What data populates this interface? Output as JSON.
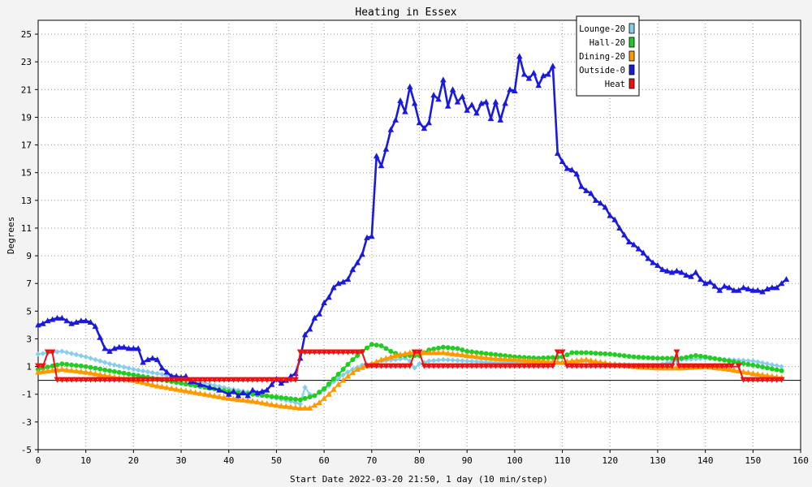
{
  "chart_data": {
    "type": "line",
    "title": "Heating in Essex",
    "xlabel": "Start Date 2022-03-20 21:50, 1 day (10 min/step)",
    "ylabel": "Degrees",
    "xlim": [
      0,
      160
    ],
    "ylim": [
      -5,
      26
    ],
    "xticks": [
      0,
      10,
      20,
      30,
      40,
      50,
      60,
      70,
      80,
      90,
      100,
      110,
      120,
      130,
      140,
      150,
      160
    ],
    "yticks": [
      -5,
      -3,
      -1,
      1,
      3,
      5,
      7,
      9,
      11,
      13,
      15,
      17,
      19,
      21,
      23,
      25
    ],
    "grid": true,
    "legend_position": "top-right",
    "zero_line": 0,
    "series": [
      {
        "name": "Lounge-20",
        "color": "#87ceeb",
        "marker": "diamond",
        "points": [
          [
            0,
            1.9
          ],
          [
            5,
            2.1
          ],
          [
            10,
            1.7
          ],
          [
            15,
            1.2
          ],
          [
            20,
            0.8
          ],
          [
            25,
            0.5
          ],
          [
            30,
            0.2
          ],
          [
            35,
            -0.2
          ],
          [
            40,
            -0.6
          ],
          [
            45,
            -0.9
          ],
          [
            50,
            -1.3
          ],
          [
            53,
            -1.5
          ],
          [
            55,
            -1.7
          ],
          [
            56,
            -0.5
          ],
          [
            57,
            -1.0
          ],
          [
            58,
            -1.1
          ],
          [
            60,
            -0.7
          ],
          [
            62,
            -0.1
          ],
          [
            64,
            0.4
          ],
          [
            66,
            0.8
          ],
          [
            68,
            1.1
          ],
          [
            70,
            1.2
          ],
          [
            72,
            1.4
          ],
          [
            75,
            1.5
          ],
          [
            77,
            1.6
          ],
          [
            78,
            1.4
          ],
          [
            79,
            0.9
          ],
          [
            80,
            1.2
          ],
          [
            82,
            1.4
          ],
          [
            85,
            1.5
          ],
          [
            90,
            1.4
          ],
          [
            95,
            1.3
          ],
          [
            100,
            1.3
          ],
          [
            105,
            1.3
          ],
          [
            110,
            1.3
          ],
          [
            115,
            1.4
          ],
          [
            120,
            1.2
          ],
          [
            125,
            1.1
          ],
          [
            130,
            1.1
          ],
          [
            135,
            1.5
          ],
          [
            140,
            1.6
          ],
          [
            145,
            1.5
          ],
          [
            150,
            1.4
          ],
          [
            156,
            1.0
          ]
        ]
      },
      {
        "name": "Hall-20",
        "color": "#22cc22",
        "marker": "circle",
        "points": [
          [
            0,
            0.8
          ],
          [
            5,
            1.2
          ],
          [
            10,
            1.0
          ],
          [
            15,
            0.7
          ],
          [
            20,
            0.4
          ],
          [
            25,
            0.1
          ],
          [
            30,
            -0.2
          ],
          [
            35,
            -0.5
          ],
          [
            40,
            -0.8
          ],
          [
            45,
            -1.0
          ],
          [
            50,
            -1.2
          ],
          [
            55,
            -1.4
          ],
          [
            58,
            -1.1
          ],
          [
            60,
            -0.6
          ],
          [
            62,
            0.1
          ],
          [
            64,
            0.8
          ],
          [
            66,
            1.5
          ],
          [
            68,
            2.1
          ],
          [
            70,
            2.6
          ],
          [
            72,
            2.5
          ],
          [
            74,
            2.1
          ],
          [
            76,
            1.8
          ],
          [
            78,
            1.8
          ],
          [
            80,
            1.8
          ],
          [
            82,
            2.2
          ],
          [
            85,
            2.4
          ],
          [
            88,
            2.3
          ],
          [
            90,
            2.1
          ],
          [
            95,
            1.9
          ],
          [
            100,
            1.7
          ],
          [
            105,
            1.6
          ],
          [
            110,
            1.7
          ],
          [
            112,
            2.0
          ],
          [
            115,
            2.0
          ],
          [
            120,
            1.9
          ],
          [
            125,
            1.7
          ],
          [
            130,
            1.6
          ],
          [
            135,
            1.6
          ],
          [
            138,
            1.8
          ],
          [
            140,
            1.7
          ],
          [
            145,
            1.4
          ],
          [
            150,
            1.1
          ],
          [
            156,
            0.7
          ]
        ]
      },
      {
        "name": "Dining-20",
        "color": "#ff9900",
        "marker": "triangle",
        "points": [
          [
            0,
            0.6
          ],
          [
            5,
            0.8
          ],
          [
            10,
            0.6
          ],
          [
            15,
            0.3
          ],
          [
            20,
            0.0
          ],
          [
            25,
            -0.4
          ],
          [
            30,
            -0.7
          ],
          [
            35,
            -1.0
          ],
          [
            40,
            -1.3
          ],
          [
            45,
            -1.5
          ],
          [
            50,
            -1.8
          ],
          [
            55,
            -2.0
          ],
          [
            57,
            -2.0
          ],
          [
            59,
            -1.6
          ],
          [
            61,
            -1.0
          ],
          [
            63,
            -0.3
          ],
          [
            65,
            0.3
          ],
          [
            67,
            0.8
          ],
          [
            70,
            1.2
          ],
          [
            72,
            1.5
          ],
          [
            75,
            1.8
          ],
          [
            78,
            2.0
          ],
          [
            80,
            2.0
          ],
          [
            85,
            2.0
          ],
          [
            90,
            1.8
          ],
          [
            95,
            1.6
          ],
          [
            100,
            1.5
          ],
          [
            105,
            1.4
          ],
          [
            110,
            1.3
          ],
          [
            112,
            1.4
          ],
          [
            115,
            1.5
          ],
          [
            120,
            1.2
          ],
          [
            125,
            1.0
          ],
          [
            130,
            0.9
          ],
          [
            135,
            0.9
          ],
          [
            140,
            1.0
          ],
          [
            145,
            0.8
          ],
          [
            150,
            0.5
          ],
          [
            156,
            0.2
          ]
        ]
      },
      {
        "name": "Outside-0",
        "color": "#1a1adc",
        "marker": "triangle",
        "points": [
          [
            0,
            4.0
          ],
          [
            1,
            4.1
          ],
          [
            2,
            4.3
          ],
          [
            3,
            4.4
          ],
          [
            4,
            4.5
          ],
          [
            5,
            4.5
          ],
          [
            6,
            4.3
          ],
          [
            7,
            4.1
          ],
          [
            8,
            4.2
          ],
          [
            9,
            4.3
          ],
          [
            10,
            4.3
          ],
          [
            11,
            4.2
          ],
          [
            12,
            3.9
          ],
          [
            13,
            3.1
          ],
          [
            14,
            2.3
          ],
          [
            15,
            2.1
          ],
          [
            16,
            2.3
          ],
          [
            17,
            2.4
          ],
          [
            18,
            2.4
          ],
          [
            19,
            2.3
          ],
          [
            20,
            2.3
          ],
          [
            21,
            2.3
          ],
          [
            22,
            1.3
          ],
          [
            23,
            1.5
          ],
          [
            24,
            1.6
          ],
          [
            25,
            1.5
          ],
          [
            26,
            0.9
          ],
          [
            27,
            0.6
          ],
          [
            28,
            0.3
          ],
          [
            29,
            0.3
          ],
          [
            30,
            0.2
          ],
          [
            31,
            0.3
          ],
          [
            32,
            -0.1
          ],
          [
            34,
            -0.3
          ],
          [
            36,
            -0.5
          ],
          [
            38,
            -0.7
          ],
          [
            40,
            -1.0
          ],
          [
            41,
            -0.8
          ],
          [
            42,
            -1.1
          ],
          [
            43,
            -0.9
          ],
          [
            44,
            -1.1
          ],
          [
            45,
            -0.7
          ],
          [
            46,
            -0.9
          ],
          [
            47,
            -0.8
          ],
          [
            48,
            -0.7
          ],
          [
            49,
            -0.3
          ],
          [
            50,
            0.1
          ],
          [
            51,
            -0.2
          ],
          [
            52,
            0.0
          ],
          [
            53,
            0.3
          ],
          [
            54,
            0.5
          ],
          [
            55,
            1.6
          ],
          [
            56,
            3.3
          ],
          [
            57,
            3.7
          ],
          [
            58,
            4.5
          ],
          [
            59,
            4.8
          ],
          [
            60,
            5.6
          ],
          [
            61,
            6.0
          ],
          [
            62,
            6.7
          ],
          [
            63,
            7.0
          ],
          [
            64,
            7.1
          ],
          [
            65,
            7.3
          ],
          [
            66,
            8.0
          ],
          [
            67,
            8.5
          ],
          [
            68,
            9.1
          ],
          [
            69,
            10.3
          ],
          [
            70,
            10.4
          ],
          [
            71,
            16.2
          ],
          [
            72,
            15.5
          ],
          [
            73,
            16.7
          ],
          [
            74,
            18.1
          ],
          [
            75,
            18.8
          ],
          [
            76,
            20.2
          ],
          [
            77,
            19.4
          ],
          [
            78,
            21.2
          ],
          [
            79,
            20.0
          ],
          [
            80,
            18.6
          ],
          [
            81,
            18.2
          ],
          [
            82,
            18.6
          ],
          [
            83,
            20.6
          ],
          [
            84,
            20.3
          ],
          [
            85,
            21.7
          ],
          [
            86,
            19.8
          ],
          [
            87,
            21.0
          ],
          [
            88,
            20.1
          ],
          [
            89,
            20.5
          ],
          [
            90,
            19.5
          ],
          [
            91,
            19.9
          ],
          [
            92,
            19.3
          ],
          [
            93,
            20.0
          ],
          [
            94,
            20.1
          ],
          [
            95,
            18.9
          ],
          [
            96,
            20.1
          ],
          [
            97,
            18.8
          ],
          [
            98,
            20.0
          ],
          [
            99,
            21.0
          ],
          [
            100,
            20.9
          ],
          [
            101,
            23.4
          ],
          [
            102,
            22.1
          ],
          [
            103,
            21.8
          ],
          [
            104,
            22.2
          ],
          [
            105,
            21.3
          ],
          [
            106,
            22.0
          ],
          [
            107,
            22.1
          ],
          [
            108,
            22.7
          ],
          [
            109,
            16.4
          ],
          [
            110,
            15.8
          ],
          [
            111,
            15.3
          ],
          [
            112,
            15.2
          ],
          [
            113,
            14.9
          ],
          [
            114,
            14.0
          ],
          [
            115,
            13.7
          ],
          [
            116,
            13.5
          ],
          [
            117,
            13.0
          ],
          [
            118,
            12.8
          ],
          [
            119,
            12.5
          ],
          [
            120,
            11.9
          ],
          [
            121,
            11.6
          ],
          [
            122,
            11.0
          ],
          [
            123,
            10.5
          ],
          [
            124,
            10.0
          ],
          [
            125,
            9.8
          ],
          [
            126,
            9.5
          ],
          [
            127,
            9.2
          ],
          [
            128,
            8.8
          ],
          [
            129,
            8.5
          ],
          [
            130,
            8.3
          ],
          [
            131,
            8.0
          ],
          [
            132,
            7.9
          ],
          [
            133,
            7.8
          ],
          [
            134,
            7.9
          ],
          [
            135,
            7.8
          ],
          [
            136,
            7.6
          ],
          [
            137,
            7.5
          ],
          [
            138,
            7.8
          ],
          [
            139,
            7.3
          ],
          [
            140,
            7.0
          ],
          [
            141,
            7.1
          ],
          [
            142,
            6.8
          ],
          [
            143,
            6.5
          ],
          [
            144,
            6.8
          ],
          [
            145,
            6.7
          ],
          [
            146,
            6.5
          ],
          [
            147,
            6.5
          ],
          [
            148,
            6.7
          ],
          [
            149,
            6.6
          ],
          [
            150,
            6.5
          ],
          [
            151,
            6.5
          ],
          [
            152,
            6.4
          ],
          [
            153,
            6.6
          ],
          [
            154,
            6.7
          ],
          [
            155,
            6.7
          ],
          [
            156,
            7.0
          ],
          [
            157,
            7.3
          ]
        ]
      },
      {
        "name": "Heat",
        "color": "#ee1111",
        "marker": "downtriangle",
        "step": true,
        "points": [
          [
            0,
            1.0
          ],
          [
            1,
            1.0
          ],
          [
            2,
            2.0
          ],
          [
            3,
            2.0
          ],
          [
            4,
            0.0
          ],
          [
            54,
            0.0
          ],
          [
            55,
            2.0
          ],
          [
            68,
            2.0
          ],
          [
            69,
            1.0
          ],
          [
            78,
            1.0
          ],
          [
            79,
            2.0
          ],
          [
            80,
            2.0
          ],
          [
            81,
            1.0
          ],
          [
            108,
            1.0
          ],
          [
            109,
            2.0
          ],
          [
            110,
            2.0
          ],
          [
            111,
            1.0
          ],
          [
            133,
            1.0
          ],
          [
            134,
            2.0
          ],
          [
            134.5,
            1.0
          ],
          [
            147,
            1.0
          ],
          [
            148,
            0.0
          ],
          [
            156,
            0.0
          ]
        ]
      }
    ]
  }
}
